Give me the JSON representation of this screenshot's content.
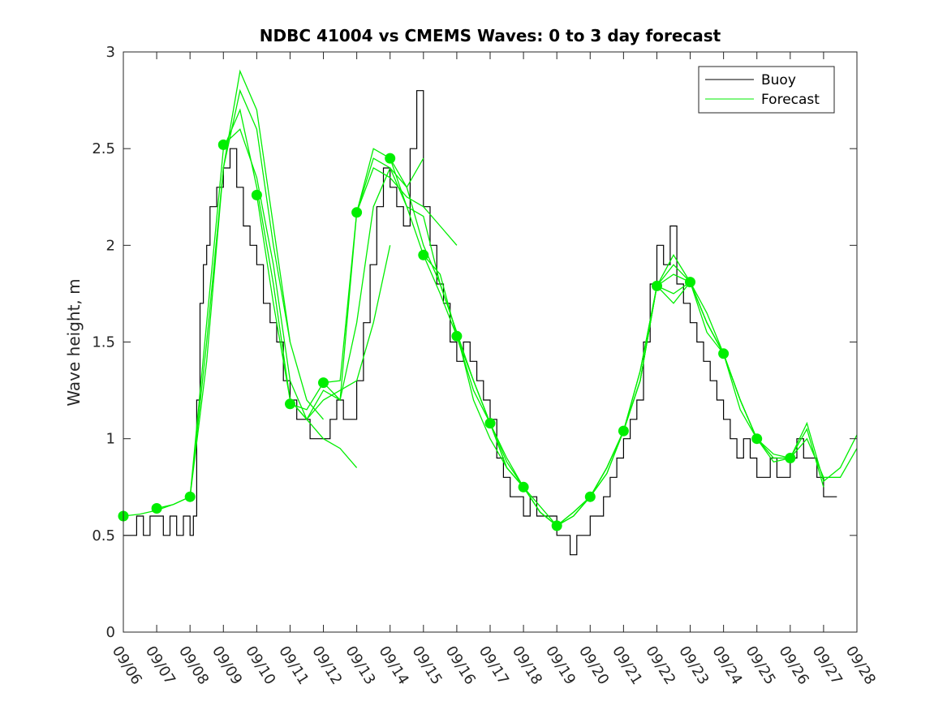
{
  "chart_data": {
    "type": "line",
    "title": "NDBC 41004 vs CMEMS Waves: 0 to 3 day forecast",
    "xlabel": "",
    "ylabel": "Wave height, m",
    "x_ticks": [
      "09/06",
      "09/07",
      "09/08",
      "09/09",
      "09/10",
      "09/11",
      "09/12",
      "09/13",
      "09/14",
      "09/15",
      "09/16",
      "09/17",
      "09/18",
      "09/19",
      "09/20",
      "09/21",
      "09/22",
      "09/23",
      "09/24",
      "09/25",
      "09/26",
      "09/27",
      "09/28"
    ],
    "xlim": [
      0,
      22
    ],
    "ylim": [
      0,
      3
    ],
    "y_ticks": [
      0,
      0.5,
      1,
      1.5,
      2,
      2.5,
      3
    ],
    "y_tick_labels": [
      "0",
      "0.5",
      "1",
      "1.5",
      "2",
      "2.5",
      "3"
    ],
    "grid": false,
    "legend": {
      "position": "top-right",
      "entries": [
        "Buoy",
        "Forecast"
      ]
    },
    "colors": {
      "buoy": "#000000",
      "forecast": "#00ee00",
      "axis": "#262626"
    },
    "buoy_series": {
      "name": "Buoy",
      "x": [
        0,
        0.2,
        0.4,
        0.6,
        0.8,
        1.0,
        1.2,
        1.4,
        1.6,
        1.8,
        2.0,
        2.1,
        2.2,
        2.3,
        2.4,
        2.5,
        2.6,
        2.8,
        3.0,
        3.2,
        3.4,
        3.6,
        3.8,
        4.0,
        4.2,
        4.4,
        4.6,
        4.8,
        5.0,
        5.2,
        5.4,
        5.6,
        5.8,
        6.0,
        6.2,
        6.4,
        6.6,
        6.8,
        7.0,
        7.2,
        7.4,
        7.6,
        7.8,
        8.0,
        8.2,
        8.4,
        8.6,
        8.8,
        9.0,
        9.2,
        9.4,
        9.6,
        9.8,
        10.0,
        10.2,
        10.4,
        10.6,
        10.8,
        11.0,
        11.2,
        11.4,
        11.6,
        11.8,
        12.0,
        12.2,
        12.4,
        12.6,
        12.8,
        13.0,
        13.2,
        13.4,
        13.6,
        13.8,
        14.0,
        14.2,
        14.4,
        14.6,
        14.8,
        15.0,
        15.2,
        15.4,
        15.6,
        15.8,
        16.0,
        16.2,
        16.4,
        16.6,
        16.8,
        17.0,
        17.2,
        17.4,
        17.6,
        17.8,
        18.0,
        18.2,
        18.4,
        18.6,
        18.8,
        19.0,
        19.2,
        19.4,
        19.6,
        19.8,
        20.0,
        20.2,
        20.4,
        20.6,
        20.8,
        21.0,
        21.2
      ],
      "y": [
        0.5,
        0.5,
        0.6,
        0.5,
        0.6,
        0.6,
        0.5,
        0.6,
        0.5,
        0.6,
        0.5,
        0.6,
        1.2,
        1.7,
        1.9,
        2.0,
        2.2,
        2.3,
        2.4,
        2.5,
        2.3,
        2.1,
        2.0,
        1.9,
        1.7,
        1.6,
        1.5,
        1.3,
        1.2,
        1.1,
        1.1,
        1.0,
        1.0,
        1.0,
        1.1,
        1.2,
        1.1,
        1.1,
        1.3,
        1.6,
        1.9,
        2.2,
        2.4,
        2.3,
        2.2,
        2.1,
        2.5,
        2.8,
        2.2,
        2.0,
        1.8,
        1.7,
        1.5,
        1.4,
        1.5,
        1.4,
        1.3,
        1.2,
        1.1,
        0.9,
        0.8,
        0.7,
        0.7,
        0.6,
        0.7,
        0.6,
        0.6,
        0.6,
        0.5,
        0.5,
        0.4,
        0.5,
        0.5,
        0.6,
        0.6,
        0.7,
        0.8,
        0.9,
        1.0,
        1.1,
        1.2,
        1.5,
        1.8,
        2.0,
        1.9,
        2.1,
        1.8,
        1.7,
        1.6,
        1.5,
        1.4,
        1.3,
        1.2,
        1.1,
        1.0,
        0.9,
        1.0,
        0.9,
        0.8,
        0.8,
        0.9,
        0.8,
        0.8,
        0.9,
        1.0,
        0.9,
        0.9,
        0.8,
        0.7,
        0.7
      ]
    },
    "forecast_series": [
      {
        "x": [
          0,
          0.5,
          1,
          1.5,
          2,
          2.5,
          3,
          3.5,
          4,
          4.5,
          5
        ],
        "y": [
          0.6,
          0.61,
          0.63,
          0.66,
          0.7,
          1.5,
          2.4,
          2.8,
          2.6,
          2.0,
          1.5
        ]
      },
      {
        "x": [
          1,
          1.5,
          2,
          2.5,
          3,
          3.5,
          4,
          4.5,
          5,
          5.5,
          6
        ],
        "y": [
          0.64,
          0.66,
          0.7,
          1.4,
          2.4,
          2.9,
          2.7,
          2.1,
          1.5,
          1.2,
          1.1
        ]
      },
      {
        "x": [
          2,
          2.5,
          3,
          3.5,
          4,
          4.5,
          5,
          5.5,
          6,
          6.5,
          7
        ],
        "y": [
          0.7,
          1.6,
          2.5,
          2.7,
          2.3,
          1.8,
          1.2,
          1.1,
          1.0,
          0.95,
          0.85
        ]
      },
      {
        "x": [
          3,
          3.5,
          4,
          4.5,
          5,
          5.5,
          6,
          6.5,
          7,
          7.5,
          8
        ],
        "y": [
          2.52,
          2.6,
          2.35,
          1.9,
          1.3,
          1.1,
          1.2,
          1.25,
          1.3,
          1.6,
          2.0
        ]
      },
      {
        "x": [
          4,
          4.5,
          5,
          5.5,
          6,
          6.5,
          7,
          7.5,
          8,
          8.5,
          9
        ],
        "y": [
          2.26,
          1.7,
          1.2,
          1.1,
          1.25,
          1.2,
          1.6,
          2.2,
          2.4,
          2.3,
          2.45
        ]
      },
      {
        "x": [
          5,
          5.5,
          6,
          6.5,
          7,
          7.5,
          8,
          8.5,
          9,
          9.5,
          10
        ],
        "y": [
          1.18,
          1.15,
          1.29,
          1.2,
          2.17,
          2.4,
          2.35,
          2.25,
          2.2,
          2.1,
          2.0
        ]
      },
      {
        "x": [
          6,
          6.5,
          7,
          7.5,
          8,
          8.5,
          9,
          9.5,
          10,
          10.5,
          11
        ],
        "y": [
          1.29,
          1.3,
          2.17,
          2.45,
          2.4,
          2.2,
          2.15,
          1.8,
          1.55,
          1.3,
          1.08
        ]
      },
      {
        "x": [
          7,
          7.5,
          8,
          8.5,
          9,
          9.5,
          10,
          10.5,
          11,
          11.5,
          12
        ],
        "y": [
          2.17,
          2.5,
          2.45,
          2.3,
          2.0,
          1.8,
          1.55,
          1.2,
          1.0,
          0.85,
          0.75
        ]
      },
      {
        "x": [
          8,
          8.5,
          9,
          9.5,
          10,
          10.5,
          11,
          11.5,
          12,
          12.5,
          13
        ],
        "y": [
          2.45,
          2.2,
          1.95,
          1.75,
          1.53,
          1.25,
          1.08,
          0.85,
          0.75,
          0.65,
          0.55
        ]
      },
      {
        "x": [
          9,
          9.5,
          10,
          10.5,
          11,
          11.5,
          12,
          12.5,
          13,
          13.5,
          14
        ],
        "y": [
          1.95,
          1.85,
          1.53,
          1.3,
          1.08,
          0.85,
          0.75,
          0.62,
          0.55,
          0.62,
          0.7
        ]
      },
      {
        "x": [
          10,
          10.5,
          11,
          11.5,
          12,
          12.5,
          13,
          13.5,
          14,
          14.5,
          15
        ],
        "y": [
          1.53,
          1.3,
          1.08,
          0.88,
          0.75,
          0.62,
          0.55,
          0.6,
          0.7,
          0.85,
          1.04
        ]
      },
      {
        "x": [
          11,
          11.5,
          12,
          12.5,
          13,
          13.5,
          14,
          14.5,
          15,
          15.5,
          16
        ],
        "y": [
          1.08,
          0.9,
          0.75,
          0.62,
          0.55,
          0.62,
          0.7,
          0.85,
          1.04,
          1.35,
          1.79
        ]
      },
      {
        "x": [
          12,
          12.5,
          13,
          13.5,
          14,
          14.5,
          15,
          15.5,
          16,
          16.5,
          17
        ],
        "y": [
          0.75,
          0.62,
          0.55,
          0.6,
          0.7,
          0.82,
          1.04,
          1.3,
          1.79,
          1.9,
          1.81
        ]
      },
      {
        "x": [
          13,
          13.5,
          14,
          14.5,
          15,
          15.5,
          16,
          16.5,
          17,
          17.5,
          18
        ],
        "y": [
          0.55,
          0.6,
          0.7,
          0.85,
          1.04,
          1.3,
          1.79,
          1.95,
          1.81,
          1.6,
          1.44
        ]
      },
      {
        "x": [
          14,
          14.5,
          15,
          15.5,
          16,
          16.5,
          17,
          17.5,
          18,
          18.5,
          19
        ],
        "y": [
          0.7,
          0.82,
          1.04,
          1.35,
          1.79,
          1.85,
          1.81,
          1.55,
          1.44,
          1.2,
          1.0
        ]
      },
      {
        "x": [
          15,
          15.5,
          16,
          16.5,
          17,
          17.5,
          18,
          18.5,
          19,
          19.5,
          20
        ],
        "y": [
          1.04,
          1.3,
          1.79,
          1.7,
          1.81,
          1.6,
          1.44,
          1.15,
          1.0,
          0.92,
          0.9
        ]
      },
      {
        "x": [
          16,
          16.5,
          17,
          17.5,
          18,
          18.5,
          19,
          19.5,
          20,
          20.5,
          21
        ],
        "y": [
          1.79,
          1.75,
          1.81,
          1.6,
          1.44,
          1.2,
          1.0,
          0.9,
          0.9,
          1.05,
          0.75
        ]
      },
      {
        "x": [
          17,
          17.5,
          18,
          18.5,
          19,
          19.5,
          20,
          20.5,
          21,
          21.5,
          22
        ],
        "y": [
          1.81,
          1.65,
          1.44,
          1.2,
          1.0,
          0.9,
          0.9,
          1.08,
          0.78,
          0.85,
          1.02
        ]
      },
      {
        "x": [
          18,
          18.5,
          19,
          19.5,
          20,
          20.5,
          21,
          21.5,
          22
        ],
        "y": [
          1.44,
          1.2,
          1.0,
          0.88,
          0.9,
          1.0,
          0.8,
          0.8,
          0.95
        ]
      }
    ],
    "forecast_markers": {
      "x": [
        0,
        1,
        2,
        3,
        4,
        5,
        6,
        7,
        8,
        9,
        10,
        11,
        12,
        13,
        14,
        15,
        16,
        17,
        18,
        19,
        20
      ],
      "y": [
        0.6,
        0.64,
        0.7,
        2.52,
        2.26,
        1.18,
        1.29,
        2.17,
        2.45,
        1.95,
        1.53,
        1.08,
        0.75,
        0.55,
        0.7,
        1.04,
        1.79,
        1.81,
        1.44,
        1.0,
        0.9
      ]
    }
  }
}
